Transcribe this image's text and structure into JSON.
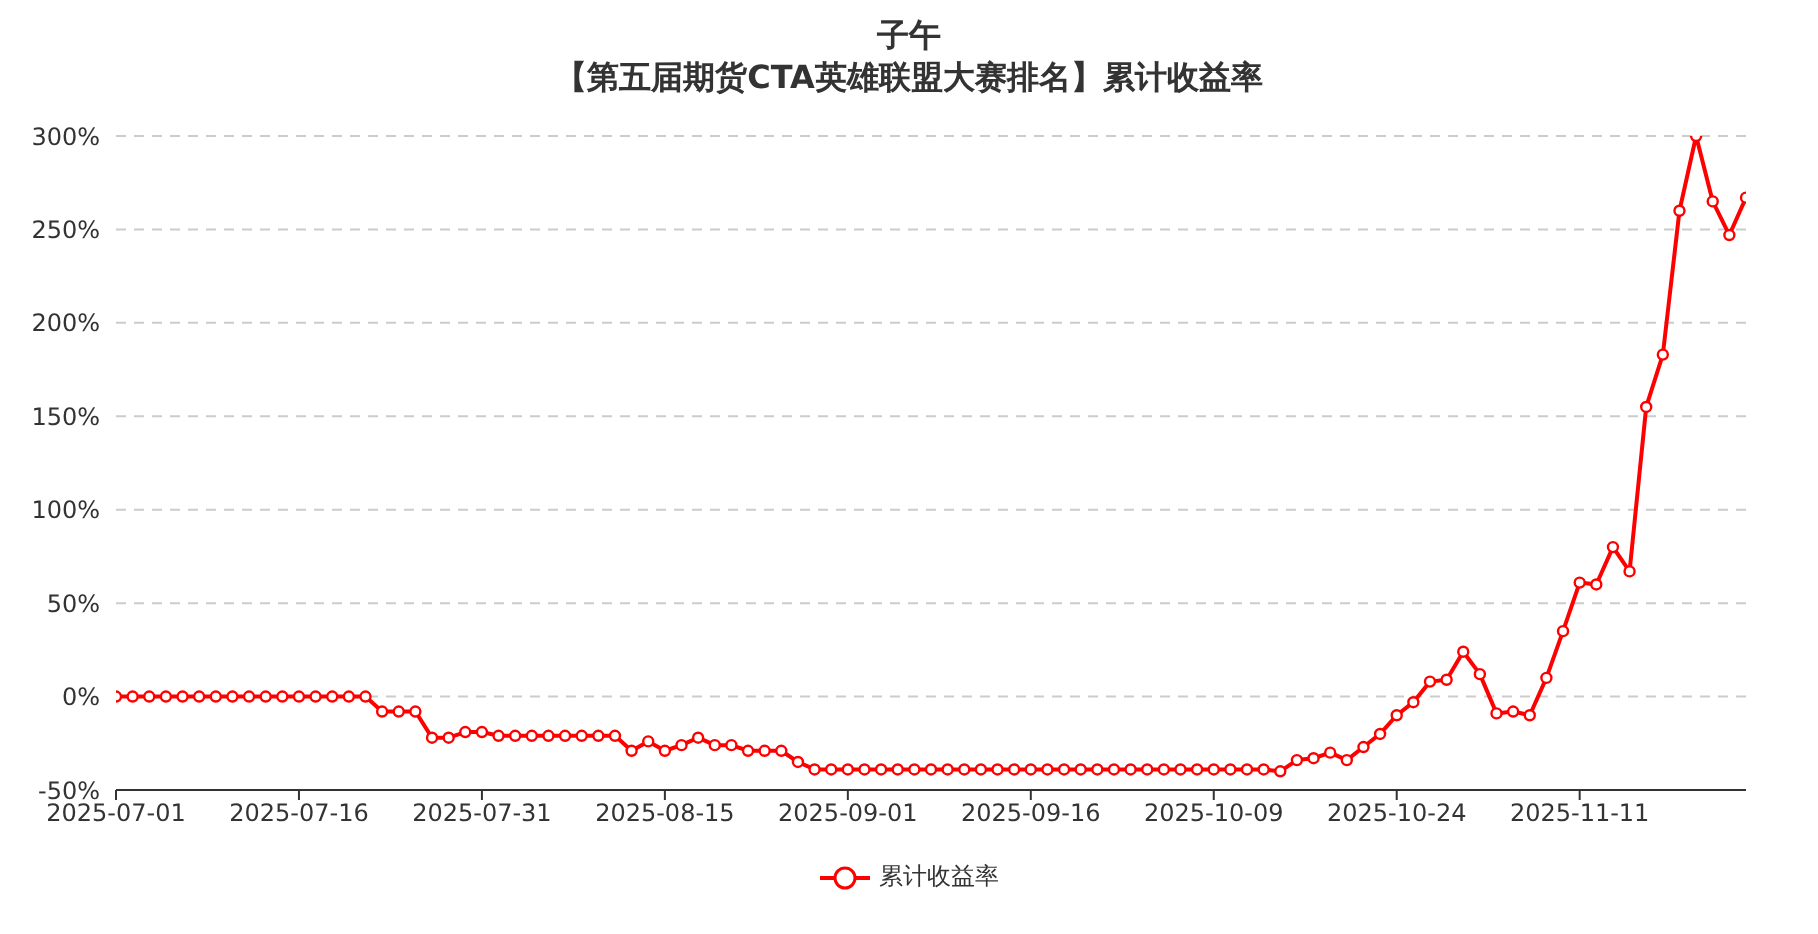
{
  "chart_data": {
    "type": "line",
    "title": "子午",
    "subtitle": "【第五届期货CTA英雄联盟大赛排名】累计收益率",
    "categories": [
      "2025-07-01",
      null,
      null,
      null,
      null,
      null,
      null,
      null,
      null,
      null,
      null,
      "2025-07-16",
      null,
      null,
      null,
      null,
      null,
      null,
      null,
      null,
      null,
      null,
      "2025-07-31",
      null,
      null,
      null,
      null,
      null,
      null,
      null,
      null,
      null,
      null,
      "2025-08-15",
      null,
      null,
      null,
      null,
      null,
      null,
      null,
      null,
      null,
      null,
      "2025-09-01",
      null,
      null,
      null,
      null,
      null,
      null,
      null,
      null,
      null,
      null,
      "2025-09-16",
      null,
      null,
      null,
      null,
      null,
      null,
      null,
      null,
      null,
      null,
      "2025-10-09",
      null,
      null,
      null,
      null,
      null,
      null,
      null,
      null,
      null,
      null,
      "2025-10-24",
      null,
      null,
      null,
      null,
      null,
      null,
      null,
      null,
      null,
      null,
      "2025-11-11",
      null,
      null,
      null,
      null,
      null,
      null,
      null,
      null,
      null,
      null
    ],
    "series": [
      {
        "name": "累计收益率",
        "color": "#ff0000",
        "values": [
          0,
          0,
          0,
          0,
          0,
          0,
          0,
          0,
          0,
          0,
          0,
          0,
          0,
          0,
          0,
          0,
          -8,
          -8,
          -8,
          -22,
          -22,
          -19,
          -19,
          -21,
          -21,
          -21,
          -21,
          -21,
          -21,
          -21,
          -21,
          -29,
          -24,
          -29,
          -26,
          -22,
          -26,
          -26,
          -29,
          -29,
          -29,
          -35,
          -39,
          -39,
          -39,
          -39,
          -39,
          -39,
          -39,
          -39,
          -39,
          -39,
          -39,
          -39,
          -39,
          -39,
          -39,
          -39,
          -39,
          -39,
          -39,
          -39,
          -39,
          -39,
          -39,
          -39,
          -39,
          -39,
          -39,
          -39,
          -40,
          -34,
          -33,
          -30,
          -34,
          -27,
          -20,
          -10,
          -3,
          8,
          9,
          24,
          12,
          -9,
          -8,
          -10,
          10,
          35,
          61,
          60,
          80,
          67,
          155,
          183,
          260,
          300,
          265,
          247,
          267
        ]
      }
    ],
    "ylim": [
      -50,
      300
    ],
    "yticks": [
      {
        "value": -50,
        "label": "-50%"
      },
      {
        "value": 0,
        "label": "0%"
      },
      {
        "value": 50,
        "label": "50%"
      },
      {
        "value": 100,
        "label": "100%"
      },
      {
        "value": 150,
        "label": "150%"
      },
      {
        "value": 200,
        "label": "200%"
      },
      {
        "value": 250,
        "label": "250%"
      },
      {
        "value": 300,
        "label": "300%"
      }
    ],
    "grid": "y",
    "legend": "bottom",
    "marker": "circle",
    "line_style": "solid"
  }
}
